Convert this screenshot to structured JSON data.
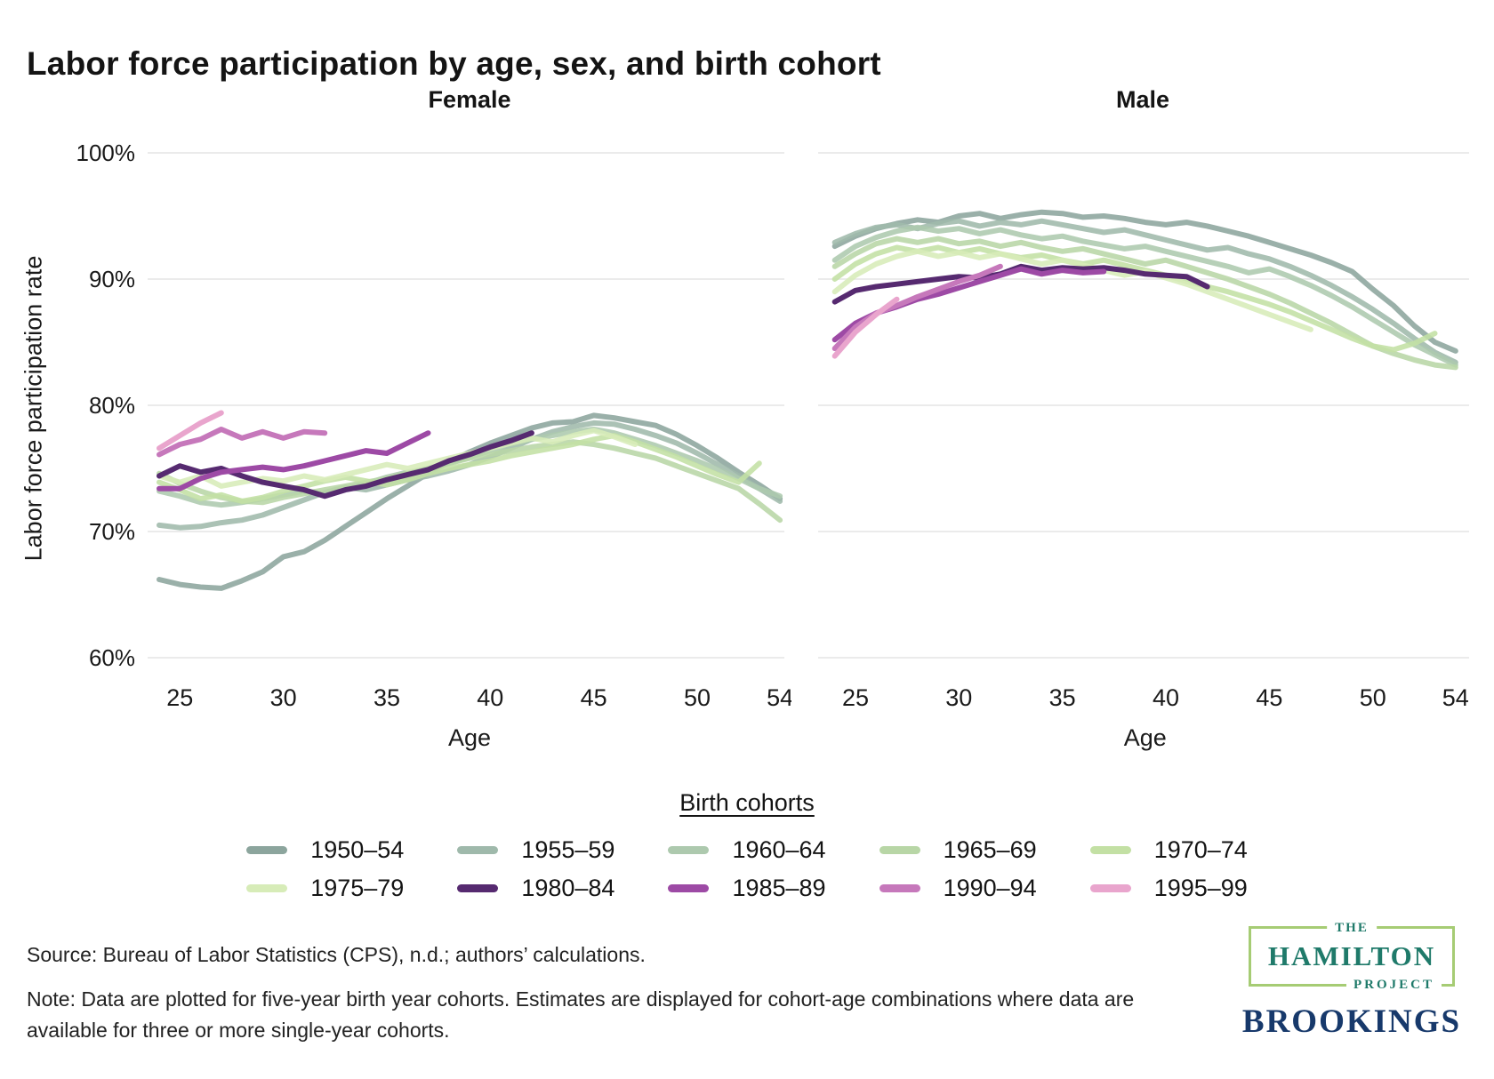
{
  "title": "Labor force participation by age, sex, and birth cohort",
  "panels": [
    {
      "title": "Female"
    },
    {
      "title": "Male"
    }
  ],
  "legend": {
    "title": "Birth cohorts"
  },
  "source": "Source: Bureau of Labor Statistics (CPS), n.d.; authors’ calculations.",
  "note": "Note: Data are plotted for five-year birth year cohorts. Estimates are displayed for cohort-age combinations where data are available for three or more single-year cohorts.",
  "logos": {
    "hamilton": {
      "the": "THE",
      "name": "HAMILTON",
      "project": "PROJECT"
    },
    "brookings": "BROOKINGS",
    "hamilton_text_color": "#1f7a6a",
    "hamilton_border_color": "#a6cc74",
    "brookings_color": "#17396b"
  },
  "chart_data": {
    "type": "line",
    "title": "Labor force participation by age, sex, and birth cohort",
    "xlabel": "Age",
    "ylabel": "Labor force participation rate",
    "xlim": [
      24,
      54
    ],
    "ylim": [
      60,
      100
    ],
    "x_ticks": [
      25,
      30,
      35,
      40,
      45,
      50,
      54
    ],
    "y_ticks": [
      100,
      90,
      80,
      70,
      60
    ],
    "y_tick_labels": [
      "100%",
      "90%",
      "80%",
      "70%",
      "60%"
    ],
    "grid": "horizontal",
    "legend_position": "bottom",
    "gridline_color": "#ebebeb",
    "cohorts": [
      {
        "name": "1950–54",
        "color": "#8ca59d",
        "start_age": 24,
        "female": [
          66.2,
          65.8,
          65.6,
          65.5,
          66.1,
          66.8,
          68.0,
          68.4,
          69.3,
          70.4,
          71.5,
          72.6,
          73.6,
          74.6,
          75.5,
          76.3,
          77.0,
          77.6,
          78.2,
          78.6,
          78.7,
          79.2,
          79.0,
          78.7,
          78.4,
          77.7,
          76.8,
          75.8,
          74.7,
          73.7,
          72.6
        ],
        "male": [
          92.6,
          93.4,
          94.0,
          94.4,
          94.7,
          94.5,
          95.0,
          95.2,
          94.8,
          95.1,
          95.3,
          95.2,
          94.9,
          95.0,
          94.8,
          94.5,
          94.3,
          94.5,
          94.2,
          93.8,
          93.4,
          92.9,
          92.4,
          91.9,
          91.3,
          90.6,
          89.2,
          87.9,
          86.3,
          85.0,
          84.3
        ]
      },
      {
        "name": "1955–59",
        "color": "#9fb9ab",
        "start_age": 24,
        "female": [
          70.5,
          70.3,
          70.4,
          70.7,
          70.9,
          71.3,
          71.9,
          72.5,
          73.1,
          73.5,
          73.3,
          73.7,
          74.1,
          74.4,
          74.8,
          75.3,
          75.9,
          76.6,
          77.3,
          77.9,
          78.3,
          78.6,
          78.5,
          78.1,
          77.6,
          77.0,
          76.2,
          75.3,
          74.4,
          73.4,
          72.4
        ],
        "male": [
          92.9,
          93.6,
          94.1,
          94.3,
          94.0,
          94.4,
          94.6,
          94.2,
          94.5,
          94.3,
          94.6,
          94.3,
          94.0,
          93.7,
          93.9,
          93.5,
          93.1,
          92.7,
          92.3,
          92.5,
          92.0,
          91.6,
          91.0,
          90.3,
          89.5,
          88.6,
          87.6,
          86.5,
          85.3,
          84.2,
          83.4
        ]
      },
      {
        "name": "1960–64",
        "color": "#adc9ae",
        "start_age": 24,
        "female": [
          73.2,
          72.8,
          72.3,
          72.1,
          72.3,
          72.6,
          72.9,
          73.2,
          73.0,
          73.4,
          73.8,
          74.3,
          74.7,
          75.0,
          75.4,
          75.9,
          76.4,
          76.9,
          77.3,
          77.6,
          77.9,
          78.1,
          77.8,
          77.3,
          76.8,
          76.2,
          75.6,
          74.9,
          74.2,
          73.4,
          72.8
        ],
        "male": [
          91.5,
          92.6,
          93.3,
          93.8,
          94.1,
          93.8,
          94.0,
          93.6,
          93.9,
          93.5,
          93.2,
          93.4,
          93.0,
          92.7,
          92.4,
          92.6,
          92.2,
          91.8,
          91.4,
          91.0,
          90.5,
          90.8,
          90.2,
          89.5,
          88.7,
          87.8,
          86.8,
          85.8,
          84.8,
          84.0,
          83.2
        ]
      },
      {
        "name": "1965–69",
        "color": "#b8d6a6",
        "start_age": 24,
        "female": [
          74.6,
          73.8,
          73.2,
          72.7,
          72.4,
          72.3,
          72.7,
          73.0,
          73.3,
          73.6,
          73.9,
          74.2,
          74.6,
          75.0,
          75.4,
          75.8,
          76.1,
          76.4,
          76.7,
          76.9,
          77.1,
          76.9,
          76.6,
          76.2,
          75.8,
          75.2,
          74.6,
          74.0,
          73.4,
          72.2,
          70.9
        ],
        "male": [
          91.0,
          92.0,
          92.8,
          93.2,
          92.9,
          93.2,
          92.8,
          93.0,
          92.6,
          92.9,
          92.5,
          92.2,
          92.4,
          92.0,
          91.6,
          91.2,
          91.5,
          91.0,
          90.5,
          90.0,
          89.4,
          88.8,
          88.1,
          87.3,
          86.5,
          85.6,
          84.7,
          84.1,
          83.6,
          83.2,
          83.0
        ]
      },
      {
        "name": "1970–74",
        "color": "#c3e0a4",
        "start_age": 24,
        "female": [
          73.9,
          73.3,
          72.6,
          72.9,
          72.4,
          72.7,
          73.2,
          73.6,
          74.0,
          74.3,
          74.0,
          73.7,
          74.1,
          74.6,
          75.0,
          75.3,
          75.6,
          76.0,
          76.3,
          76.6,
          76.9,
          77.3,
          77.6,
          77.1,
          76.5,
          75.9,
          75.2,
          74.5,
          73.9,
          75.4
        ],
        "male": [
          90.0,
          91.2,
          92.0,
          92.5,
          92.2,
          92.5,
          92.1,
          92.4,
          92.0,
          91.7,
          91.9,
          91.5,
          91.2,
          91.5,
          91.1,
          90.7,
          90.3,
          89.8,
          89.4,
          89.0,
          88.5,
          88.0,
          87.4,
          86.7,
          86.0,
          85.3,
          84.7,
          84.4,
          84.9,
          85.7
        ]
      },
      {
        "name": "1975–79",
        "color": "#d7ecb8",
        "start_age": 24,
        "female": [
          74.4,
          73.9,
          74.4,
          73.6,
          73.9,
          74.2,
          74.0,
          74.4,
          74.1,
          74.5,
          74.9,
          75.3,
          75.0,
          75.4,
          75.8,
          76.2,
          76.6,
          77.0,
          77.4,
          77.1,
          77.6,
          78.0,
          77.5,
          76.9
        ],
        "male": [
          89.0,
          90.3,
          91.2,
          91.8,
          92.2,
          91.8,
          92.1,
          91.7,
          92.0,
          91.6,
          91.2,
          91.5,
          91.1,
          90.7,
          90.3,
          90.6,
          90.1,
          89.6,
          89.0,
          88.4,
          87.8,
          87.2,
          86.6,
          86.0
        ]
      },
      {
        "name": "1980–84",
        "color": "#562a70",
        "start_age": 24,
        "female": [
          74.4,
          75.2,
          74.7,
          75.0,
          74.4,
          73.9,
          73.6,
          73.3,
          72.8,
          73.3,
          73.6,
          74.1,
          74.5,
          74.9,
          75.6,
          76.1,
          76.7,
          77.2,
          77.8
        ],
        "male": [
          88.2,
          89.1,
          89.4,
          89.6,
          89.8,
          90.0,
          90.2,
          90.1,
          90.4,
          91.0,
          90.7,
          90.9,
          90.8,
          90.9,
          90.7,
          90.4,
          90.3,
          90.2,
          89.4
        ]
      },
      {
        "name": "1985–89",
        "color": "#9d4aa5",
        "start_age": 24,
        "female": [
          73.4,
          73.4,
          74.2,
          74.7,
          74.9,
          75.1,
          74.9,
          75.2,
          75.6,
          76.0,
          76.4,
          76.2,
          77.0,
          77.8
        ],
        "male": [
          85.2,
          86.5,
          87.3,
          87.8,
          88.4,
          88.8,
          89.3,
          89.8,
          90.3,
          90.8,
          90.4,
          90.7,
          90.5,
          90.6
        ]
      },
      {
        "name": "1990–94",
        "color": "#c678bb",
        "start_age": 24,
        "female": [
          76.1,
          76.9,
          77.3,
          78.1,
          77.4,
          77.9,
          77.4,
          77.9,
          77.8
        ],
        "male": [
          84.5,
          86.2,
          87.3,
          87.9,
          88.6,
          89.2,
          89.8,
          90.3,
          91.0
        ]
      },
      {
        "name": "1995–99",
        "color": "#e9a5cd",
        "start_age": 24,
        "female": [
          76.6,
          77.6,
          78.6,
          79.4
        ],
        "male": [
          83.9,
          85.8,
          87.2,
          88.4
        ]
      }
    ]
  }
}
